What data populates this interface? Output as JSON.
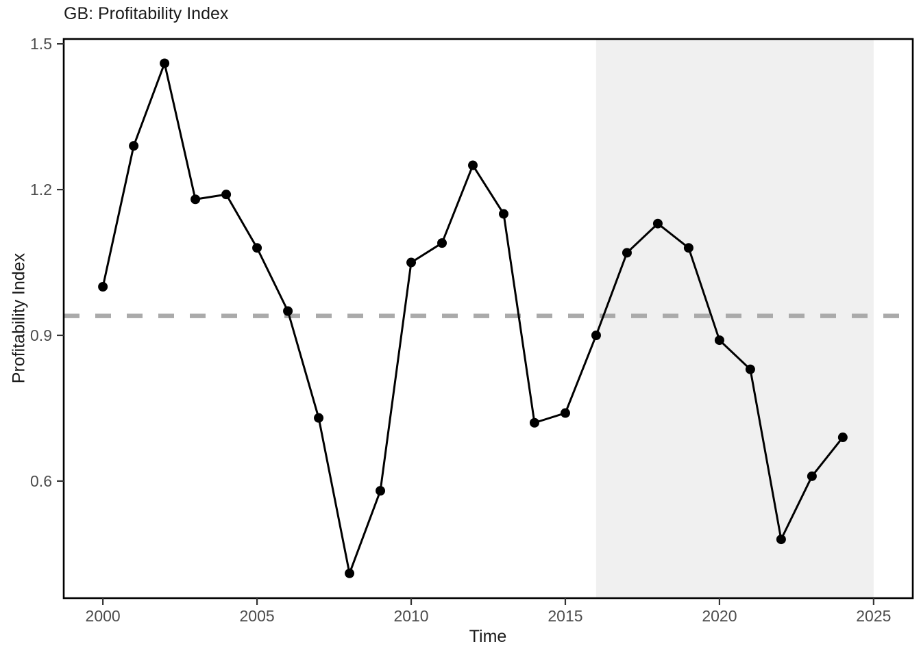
{
  "title": "GB: Profitability Index",
  "chart_data": {
    "type": "line",
    "title": "GB: Profitability Index",
    "xlabel": "Time",
    "ylabel": "Profitability Index",
    "legend": "none",
    "grid": "off",
    "xlim": [
      1998.73,
      2026.27
    ],
    "ylim": [
      0.359,
      1.51
    ],
    "x_ticks": [
      2000,
      2005,
      2010,
      2015,
      2020,
      2025
    ],
    "x_tick_labels": [
      "2000",
      "2005",
      "2010",
      "2015",
      "2020",
      "2025"
    ],
    "y_ticks": [
      0.6,
      0.9,
      1.2,
      1.5
    ],
    "y_tick_labels": [
      "0.6",
      "0.9",
      "1.2",
      "1.5"
    ],
    "series": [
      {
        "name": "Profitability Index",
        "x": [
          2000,
          2001,
          2002,
          2003,
          2004,
          2005,
          2006,
          2007,
          2008,
          2009,
          2010,
          2011,
          2012,
          2013,
          2014,
          2015,
          2016,
          2017,
          2018,
          2019,
          2020,
          2021,
          2022,
          2023,
          2024
        ],
        "values": [
          1.0,
          1.29,
          1.46,
          1.18,
          1.19,
          1.08,
          0.95,
          0.73,
          0.41,
          0.58,
          1.05,
          1.09,
          1.25,
          1.15,
          0.72,
          0.74,
          0.9,
          1.07,
          1.13,
          1.08,
          0.89,
          0.83,
          0.48,
          0.61,
          0.69
        ],
        "line_color": "#000000",
        "point_color": "#000000",
        "marker": "circle"
      }
    ],
    "reference_line": {
      "y": 0.94,
      "style": "dashed",
      "color": "#aaaaaa"
    },
    "shaded_region": {
      "x_start": 2016,
      "x_end": 2025,
      "color": "#f0f0f0"
    }
  }
}
